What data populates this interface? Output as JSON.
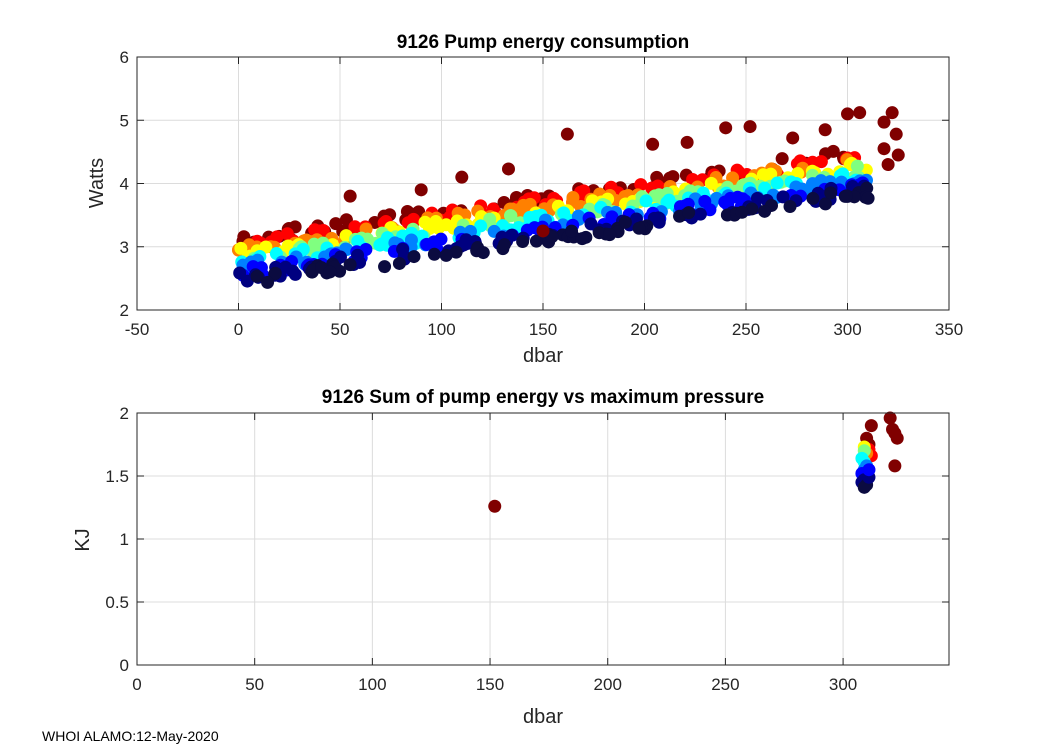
{
  "colors": {
    "profile_scale": [
      "#800000",
      "#ff0000",
      "#ff8000",
      "#ffff00",
      "#80ff80",
      "#00ffff",
      "#0080ff",
      "#0000ff",
      "#000080",
      "#0b0b40"
    ],
    "grid": "#dcdcdc",
    "axis": "#262626"
  },
  "footer": "WHOI ALAMO:12-May-2020",
  "chart_data": [
    {
      "type": "scatter",
      "title": "9126 Pump energy consumption",
      "xlabel": "dbar",
      "ylabel": "Watts",
      "xlim": [
        -50,
        350
      ],
      "ylim": [
        2,
        6
      ],
      "xticks": [
        -50,
        0,
        50,
        100,
        150,
        200,
        250,
        300,
        350
      ],
      "yticks": [
        2,
        3,
        4,
        5,
        6
      ],
      "grid": true,
      "series_model": {
        "description": "Many profiles colored from dark red (high energy) to dark navy (low energy); Watts rise roughly linearly with pressure",
        "x_range": [
          0,
          312
        ],
        "y_at_0": [
          2.45,
          3.1
        ],
        "y_at_310": [
          3.85,
          4.5
        ]
      },
      "outliers": [
        {
          "x": 162,
          "y": 4.78
        },
        {
          "x": 204,
          "y": 4.62
        },
        {
          "x": 221,
          "y": 4.65
        },
        {
          "x": 240,
          "y": 4.88
        },
        {
          "x": 252,
          "y": 4.9
        },
        {
          "x": 273,
          "y": 4.72
        },
        {
          "x": 289,
          "y": 4.85
        },
        {
          "x": 300,
          "y": 5.1
        },
        {
          "x": 306,
          "y": 5.12
        },
        {
          "x": 318,
          "y": 4.97
        },
        {
          "x": 322,
          "y": 5.12
        },
        {
          "x": 324,
          "y": 4.78
        },
        {
          "x": 320,
          "y": 4.3
        },
        {
          "x": 133,
          "y": 4.23
        },
        {
          "x": 55,
          "y": 3.8
        },
        {
          "x": 150,
          "y": 3.25
        },
        {
          "x": 110,
          "y": 4.1
        },
        {
          "x": 90,
          "y": 3.9
        },
        {
          "x": 318,
          "y": 4.55
        },
        {
          "x": 325,
          "y": 4.45
        }
      ]
    },
    {
      "type": "scatter",
      "title": "9126 Sum of pump energy vs maximum pressure",
      "xlabel": "dbar",
      "ylabel": "KJ",
      "xlim": [
        0,
        345
      ],
      "ylim": [
        0,
        2
      ],
      "xticks": [
        0,
        50,
        100,
        150,
        200,
        250,
        300
      ],
      "yticks": [
        0,
        0.5,
        1,
        1.5,
        2
      ],
      "ytick_labels": [
        "0",
        "0.5",
        "1",
        "1.5",
        "2"
      ],
      "grid": true,
      "points": [
        {
          "x": 152,
          "y": 1.26,
          "c": 0
        },
        {
          "x": 320,
          "y": 1.96,
          "c": 0
        },
        {
          "x": 323,
          "y": 1.8,
          "c": 0
        },
        {
          "x": 322,
          "y": 1.84,
          "c": 0
        },
        {
          "x": 321,
          "y": 1.87,
          "c": 0
        },
        {
          "x": 322,
          "y": 1.58,
          "c": 0
        },
        {
          "x": 312,
          "y": 1.9,
          "c": 0
        },
        {
          "x": 311,
          "y": 1.75,
          "c": 0
        },
        {
          "x": 310,
          "y": 1.8,
          "c": 0
        },
        {
          "x": 311,
          "y": 1.71,
          "c": 1
        },
        {
          "x": 312,
          "y": 1.66,
          "c": 1
        },
        {
          "x": 310,
          "y": 1.68,
          "c": 2
        },
        {
          "x": 309,
          "y": 1.73,
          "c": 3
        },
        {
          "x": 309,
          "y": 1.7,
          "c": 4
        },
        {
          "x": 308,
          "y": 1.64,
          "c": 5
        },
        {
          "x": 309,
          "y": 1.61,
          "c": 5
        },
        {
          "x": 310,
          "y": 1.58,
          "c": 6
        },
        {
          "x": 309,
          "y": 1.55,
          "c": 6
        },
        {
          "x": 308,
          "y": 1.52,
          "c": 7
        },
        {
          "x": 310,
          "y": 1.5,
          "c": 7
        },
        {
          "x": 309,
          "y": 1.47,
          "c": 8
        },
        {
          "x": 308,
          "y": 1.45,
          "c": 8
        },
        {
          "x": 310,
          "y": 1.43,
          "c": 9
        },
        {
          "x": 309,
          "y": 1.41,
          "c": 9
        },
        {
          "x": 311,
          "y": 1.49,
          "c": 8
        },
        {
          "x": 311,
          "y": 1.55,
          "c": 7
        }
      ]
    }
  ]
}
